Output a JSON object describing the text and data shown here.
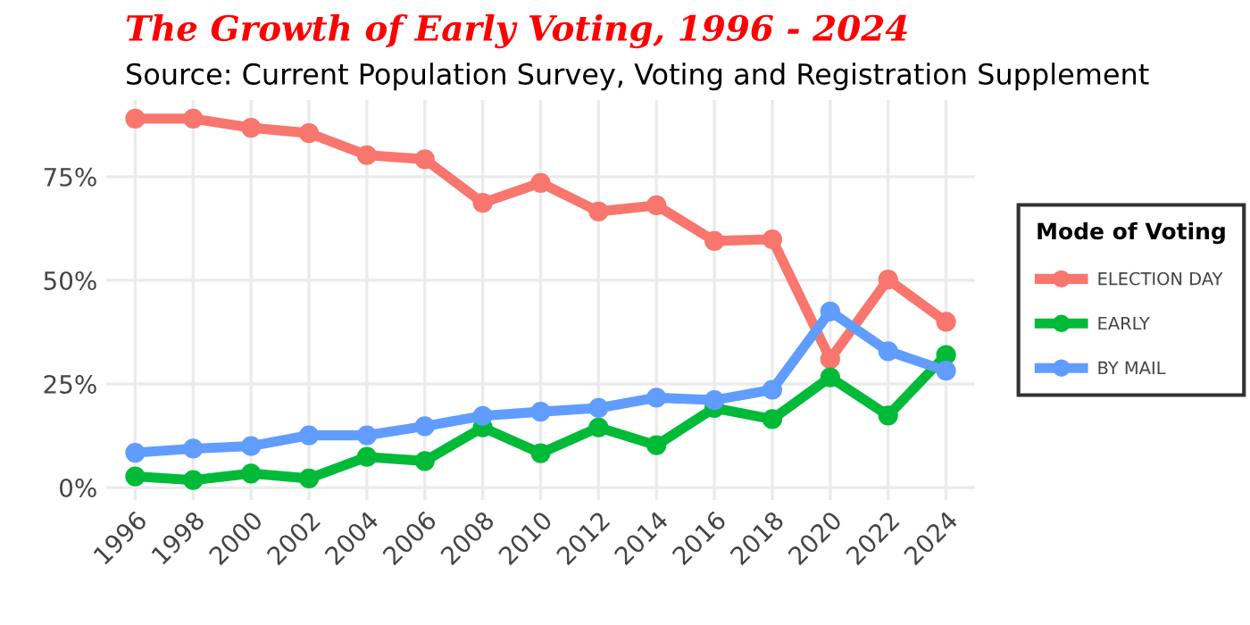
{
  "chart_data": {
    "type": "line",
    "title": "The Growth of Early Voting, 1996 - 2024",
    "subtitle": "Source: Current Population Survey, Voting and Registration Supplement",
    "legend_title": "Mode of Voting",
    "x": [
      1996,
      1998,
      2000,
      2002,
      2004,
      2006,
      2008,
      2010,
      2012,
      2014,
      2016,
      2018,
      2020,
      2022,
      2024
    ],
    "series": [
      {
        "name": "ELECTION DAY",
        "color": "#f8766d",
        "values": [
          89.0,
          89.0,
          86.8,
          85.5,
          80.2,
          79.2,
          68.7,
          73.5,
          66.6,
          68.1,
          59.5,
          59.9,
          31.0,
          50.2,
          40.0
        ]
      },
      {
        "name": "EARLY",
        "color": "#00ba38",
        "values": [
          2.7,
          1.8,
          3.4,
          2.2,
          7.4,
          6.4,
          14.5,
          8.3,
          14.5,
          10.2,
          19.2,
          16.5,
          26.6,
          17.4,
          32.0
        ]
      },
      {
        "name": "BY MAIL",
        "color": "#619cff",
        "values": [
          8.4,
          9.4,
          10.0,
          12.6,
          12.6,
          14.8,
          17.3,
          18.3,
          19.2,
          21.7,
          21.1,
          23.6,
          42.5,
          32.9,
          28.2
        ]
      }
    ],
    "xlim": [
      1995,
      2025
    ],
    "xticks": [
      1996,
      1998,
      2000,
      2002,
      2004,
      2006,
      2008,
      2010,
      2012,
      2014,
      2016,
      2018,
      2020,
      2022,
      2024
    ],
    "ylim": [
      -3,
      93.5
    ],
    "yticks": [
      {
        "value": 0,
        "label": "0%"
      },
      {
        "value": 25,
        "label": "25%"
      },
      {
        "value": 50,
        "label": "50%"
      },
      {
        "value": 75,
        "label": "75%"
      }
    ],
    "grid": true,
    "legend": "right",
    "marker": "circle",
    "line_style": "solid"
  }
}
